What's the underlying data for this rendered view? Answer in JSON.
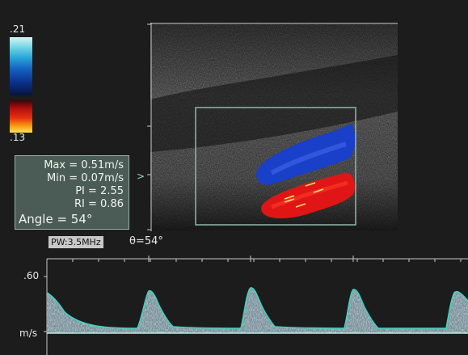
{
  "colorbar": {
    "top_label": ".21",
    "bottom_label": ".13"
  },
  "measurements": {
    "max": "Max = 0.51m/s",
    "min": "Min = 0.07m/s",
    "pi": "PI = 2.55",
    "ri": "RI = 0.86",
    "angle": "Angle = 54°"
  },
  "spectral": {
    "mode_label": "PW:3.5MHz",
    "angle_label": "θ=54°",
    "scale_top": ".60",
    "unit": "m/s"
  },
  "marker_glyph": ">",
  "colors": {
    "flow_toward": "#e01515",
    "flow_away": "#1a3fc8",
    "waveform_outline": "#3fd3c2",
    "roi_box": "#8fb7aa"
  }
}
